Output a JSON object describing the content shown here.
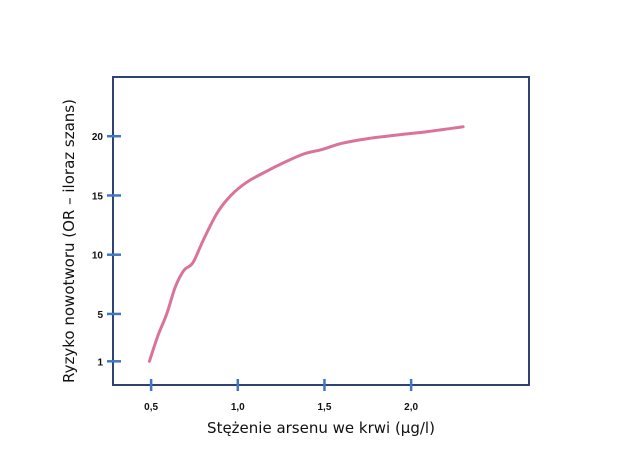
{
  "chart_data": {
    "type": "line",
    "title": "",
    "xlabel": "Stężenie arsenu we krwi (µg/l)",
    "ylabel": "Ryzyko nowotworu (OR – iloraz szans)",
    "xlim": [
      0.28,
      2.68
    ],
    "ylim": [
      -1,
      25
    ],
    "x_ticks": [
      {
        "value": 0.5,
        "label": "0,5"
      },
      {
        "value": 1.0,
        "label": "1,0"
      },
      {
        "value": 1.5,
        "label": "1,5"
      },
      {
        "value": 2.0,
        "label": "2,0"
      }
    ],
    "y_ticks": [
      {
        "value": 1,
        "label": "1"
      },
      {
        "value": 5,
        "label": "5"
      },
      {
        "value": 10,
        "label": "10"
      },
      {
        "value": 15,
        "label": "15"
      },
      {
        "value": 20,
        "label": "20"
      }
    ],
    "grid": false,
    "legend": "none",
    "series": [
      {
        "color": "#d9739a",
        "points": [
          {
            "x": 0.49,
            "y": 1.0
          },
          {
            "x": 0.54,
            "y": 3.2
          },
          {
            "x": 0.59,
            "y": 5.0
          },
          {
            "x": 0.64,
            "y": 7.3
          },
          {
            "x": 0.69,
            "y": 8.7
          },
          {
            "x": 0.74,
            "y": 9.3
          },
          {
            "x": 0.8,
            "y": 11.2
          },
          {
            "x": 0.88,
            "y": 13.5
          },
          {
            "x": 0.96,
            "y": 15.0
          },
          {
            "x": 1.05,
            "y": 16.1
          },
          {
            "x": 1.16,
            "y": 17.0
          },
          {
            "x": 1.27,
            "y": 17.8
          },
          {
            "x": 1.38,
            "y": 18.5
          },
          {
            "x": 1.49,
            "y": 18.9
          },
          {
            "x": 1.6,
            "y": 19.4
          },
          {
            "x": 1.75,
            "y": 19.8
          },
          {
            "x": 1.92,
            "y": 20.1
          },
          {
            "x": 2.1,
            "y": 20.4
          },
          {
            "x": 2.3,
            "y": 20.8
          }
        ]
      }
    ]
  },
  "colors": {
    "frame": "#2e4373",
    "tick_marks": "#3f78c0",
    "text": "#111111"
  }
}
